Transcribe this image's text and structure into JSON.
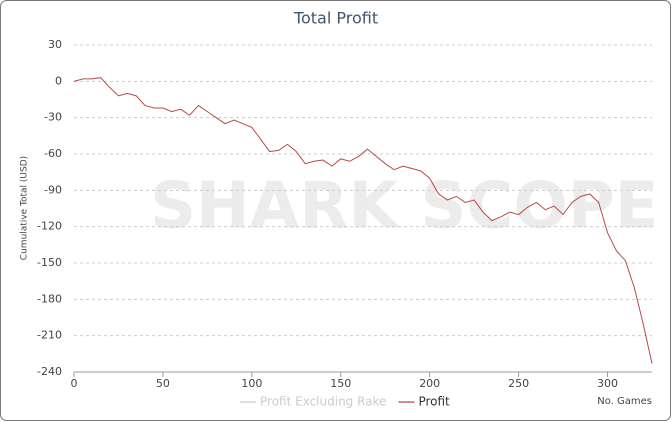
{
  "chart_data": {
    "type": "line",
    "title": "Total Profit",
    "ylabel": "Cumulative Total (USD)",
    "xlabel": "No. Games",
    "watermark": "SHARK SCOPE",
    "x": [
      0,
      5,
      10,
      15,
      20,
      25,
      30,
      35,
      40,
      45,
      50,
      55,
      60,
      65,
      70,
      75,
      80,
      85,
      90,
      95,
      100,
      105,
      110,
      115,
      120,
      125,
      130,
      135,
      140,
      145,
      150,
      155,
      160,
      165,
      170,
      175,
      180,
      185,
      190,
      195,
      200,
      205,
      210,
      215,
      220,
      225,
      230,
      235,
      240,
      245,
      250,
      255,
      260,
      265,
      270,
      275,
      280,
      285,
      290,
      295,
      300,
      305,
      310,
      315,
      320,
      325
    ],
    "series": [
      {
        "name": "Profit Excluding Rake",
        "color": "#cccccc",
        "visible": false,
        "values": [
          null,
          null,
          null,
          null,
          null,
          null,
          null,
          null,
          null,
          null,
          null,
          null,
          null,
          null,
          null,
          null,
          null,
          null,
          null,
          null,
          null,
          null,
          null,
          null,
          null,
          null,
          null,
          null,
          null,
          null,
          null,
          null,
          null,
          null,
          null,
          null,
          null,
          null,
          null,
          null,
          null,
          null,
          null,
          null,
          null,
          null,
          null,
          null,
          null,
          null,
          null,
          null,
          null,
          null,
          null,
          null,
          null,
          null,
          null,
          null,
          null,
          null,
          null,
          null,
          null,
          null
        ]
      },
      {
        "name": "Profit",
        "color": "#b94a48",
        "visible": true,
        "values": [
          0,
          2,
          2,
          3,
          -5,
          -12,
          -10,
          -12,
          -20,
          -22,
          -22,
          -25,
          -23,
          -28,
          -20,
          -25,
          -30,
          -35,
          -32,
          -35,
          -38,
          -48,
          -58,
          -57,
          -52,
          -58,
          -68,
          -66,
          -65,
          -70,
          -64,
          -66,
          -62,
          -56,
          -62,
          -68,
          -73,
          -70,
          -72,
          -74,
          -80,
          -93,
          -98,
          -95,
          -100,
          -98,
          -108,
          -115,
          -112,
          -108,
          -110,
          -104,
          -100,
          -106,
          -103,
          -110,
          -100,
          -95,
          -93,
          -100,
          -125,
          -140,
          -148,
          -170,
          -200,
          -233
        ]
      }
    ],
    "xlim": [
      0,
      325
    ],
    "xticks": [
      0,
      50,
      100,
      150,
      200,
      250,
      300
    ],
    "ylim": [
      -240,
      30
    ],
    "yticks": [
      30,
      0,
      -30,
      -60,
      -90,
      -120,
      -150,
      -180,
      -210,
      -240
    ],
    "grid": true,
    "legend": "bottom"
  }
}
